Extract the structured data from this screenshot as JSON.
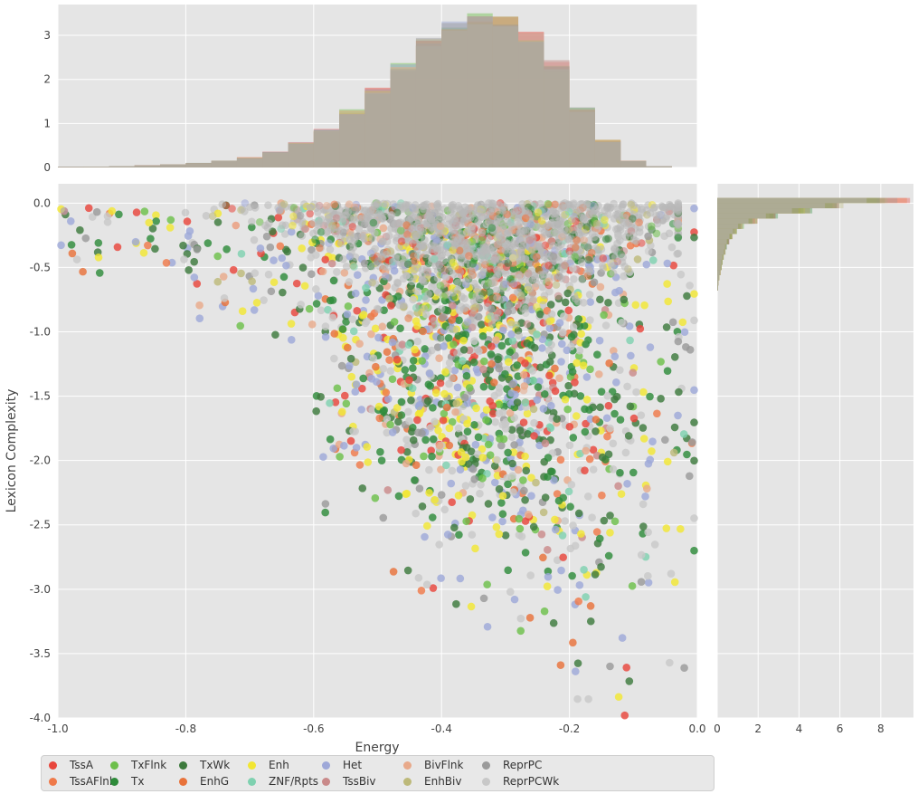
{
  "chart_data": {
    "type": "scatter",
    "title": "",
    "xlabel": "Energy",
    "ylabel": "Lexicon Complexity",
    "xlim": [
      -1.0,
      0.0
    ],
    "ylim": [
      -4.0,
      0.15
    ],
    "x_ticks": [
      "-1.0",
      "-0.8",
      "-0.6",
      "-0.4",
      "-0.2",
      "0.0"
    ],
    "y_ticks": [
      "0.0",
      "-0.5",
      "-1.0",
      "-1.5",
      "-2.0",
      "-2.5",
      "-3.0",
      "-3.5",
      "-4.0"
    ],
    "grid": true,
    "legend_position": "bottom",
    "series": [
      {
        "name": "TssA",
        "color": "#e8463c"
      },
      {
        "name": "TssAFlnk",
        "color": "#ef7a4a"
      },
      {
        "name": "TxFlnk",
        "color": "#6dbf4b"
      },
      {
        "name": "Tx",
        "color": "#2e8b3a"
      },
      {
        "name": "TxWk",
        "color": "#3d7a3d"
      },
      {
        "name": "EnhG",
        "color": "#e8723a"
      },
      {
        "name": "Enh",
        "color": "#f2e633"
      },
      {
        "name": "ZNF/Rpts",
        "color": "#7fd1b0"
      },
      {
        "name": "Het",
        "color": "#9ea8d8"
      },
      {
        "name": "TssBiv",
        "color": "#c98a8a"
      },
      {
        "name": "BivFlnk",
        "color": "#e8a98a"
      },
      {
        "name": "EnhBiv",
        "color": "#bdb97a"
      },
      {
        "name": "ReprPC",
        "color": "#9a9a9a"
      },
      {
        "name": "ReprPCWk",
        "color": "#c8c8c8"
      }
    ],
    "top_histogram": {
      "xlabel": "",
      "y_ticks": [
        "0",
        "1",
        "2",
        "3"
      ],
      "ylim": [
        0,
        3.7
      ],
      "bin_centers": [
        -0.98,
        -0.94,
        -0.9,
        -0.86,
        -0.82,
        -0.78,
        -0.74,
        -0.7,
        -0.66,
        -0.62,
        -0.58,
        -0.54,
        -0.5,
        -0.46,
        -0.42,
        -0.38,
        -0.34,
        -0.3,
        -0.26,
        -0.22,
        -0.18,
        -0.14,
        -0.1,
        -0.06,
        -0.02
      ],
      "density": [
        0.02,
        0.02,
        0.03,
        0.05,
        0.07,
        0.1,
        0.15,
        0.22,
        0.35,
        0.55,
        0.85,
        1.25,
        1.75,
        2.3,
        2.85,
        3.2,
        3.35,
        3.3,
        2.95,
        2.3,
        1.3,
        0.6,
        0.15,
        0.03,
        0.0
      ]
    },
    "right_histogram": {
      "ylabel": "",
      "x_ticks": [
        "0",
        "2",
        "4",
        "6",
        "8"
      ],
      "xlim": [
        0,
        9.6
      ],
      "bin_centers": [
        0.02,
        -0.02,
        -0.06,
        -0.1,
        -0.14,
        -0.18,
        -0.22,
        -0.26,
        -0.3,
        -0.34,
        -0.38,
        -0.42,
        -0.46,
        -0.5,
        -0.54,
        -0.58,
        -0.62,
        -0.66
      ],
      "density": [
        8.6,
        6.2,
        4.3,
        2.8,
        1.8,
        1.2,
        0.9,
        0.7,
        0.55,
        0.45,
        0.38,
        0.3,
        0.24,
        0.2,
        0.15,
        0.1,
        0.06,
        0.04
      ]
    }
  }
}
